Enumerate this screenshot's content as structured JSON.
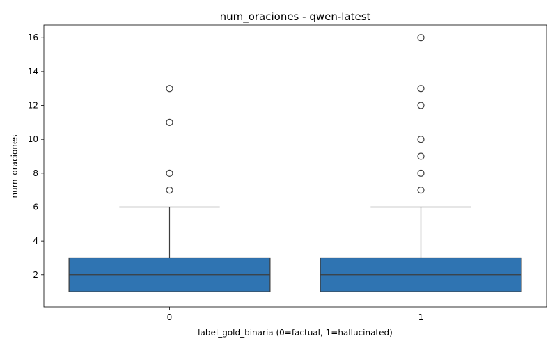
{
  "chart_data": {
    "type": "boxplot",
    "title": "num_oraciones - qwen-latest",
    "xlabel": "label_gold_binaria (0=factual, 1=hallucinated)",
    "ylabel": "num_oraciones",
    "ylim": [
      0.1,
      16.75
    ],
    "yticks": [
      2,
      4,
      6,
      8,
      10,
      12,
      14,
      16
    ],
    "grid": false,
    "colors": {
      "box": "#2f74b2",
      "line": "#3d3d3d"
    },
    "categories": [
      "0",
      "1"
    ],
    "boxes": [
      {
        "category": "0",
        "whisker_low": 1,
        "q1": 1,
        "median": 2,
        "q3": 3,
        "whisker_high": 6,
        "outliers": [
          7,
          8,
          11,
          13
        ]
      },
      {
        "category": "1",
        "whisker_low": 1,
        "q1": 1,
        "median": 2,
        "q3": 3,
        "whisker_high": 6,
        "outliers": [
          7,
          8,
          9,
          10,
          12,
          13,
          16
        ]
      }
    ]
  }
}
